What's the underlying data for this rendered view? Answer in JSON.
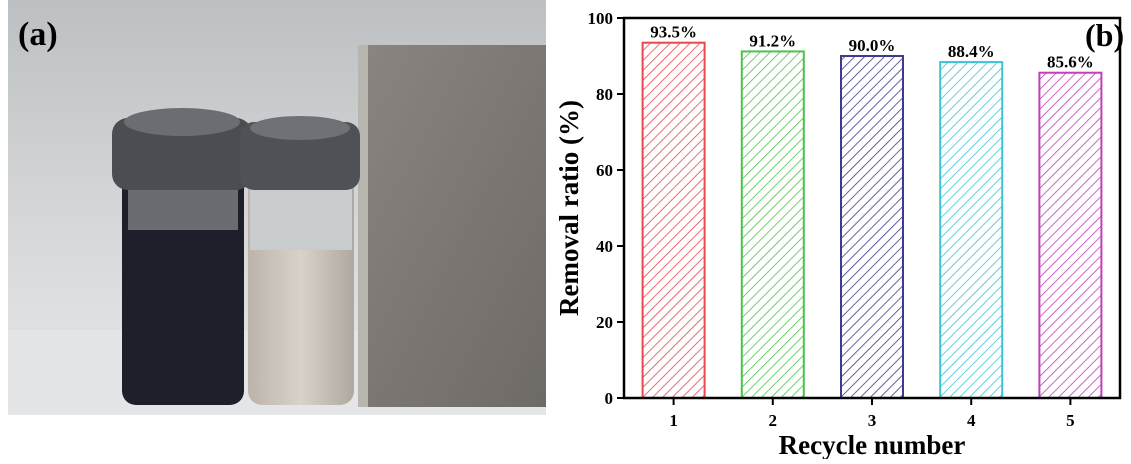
{
  "panel_a": {
    "label": "(a)"
  },
  "chart_data": {
    "type": "bar",
    "panel_label": "(b)",
    "xlabel": "Recycle number",
    "ylabel": "Removal ratio (%)",
    "categories": [
      "1",
      "2",
      "3",
      "4",
      "5"
    ],
    "values": [
      93.5,
      91.2,
      90.0,
      88.4,
      85.6
    ],
    "value_labels": [
      "93.5%",
      "91.2%",
      "90.0%",
      "88.4%",
      "85.6%"
    ],
    "colors": [
      "#e8474f",
      "#4cc24c",
      "#3c3c8c",
      "#3cc4d4",
      "#c040b8"
    ],
    "ylim": [
      0,
      100
    ],
    "yticks": [
      0,
      20,
      40,
      60,
      80,
      100
    ]
  }
}
